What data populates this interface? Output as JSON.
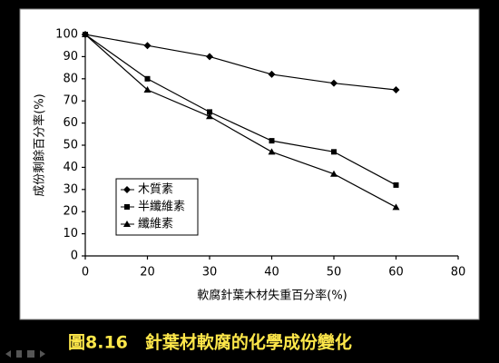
{
  "chart_data": {
    "type": "line",
    "title": "圖8.16　針葉材軟腐的化學成份變化",
    "x_label": "軟腐針葉木材失重百分率(%)",
    "y_label": "成份剩餘百分率(%)",
    "categories": [
      0,
      20,
      30,
      40,
      50,
      60,
      80
    ],
    "series": [
      {
        "name": "木質素",
        "color": "#000000",
        "marker": "diamond",
        "values": [
          100,
          95,
          90,
          82,
          78,
          75,
          null
        ]
      },
      {
        "name": "半纖維素",
        "color": "#000000",
        "marker": "square",
        "values": [
          100,
          80,
          65,
          52,
          47,
          32,
          null
        ]
      },
      {
        "name": "纖維素",
        "color": "#000000",
        "marker": "triangle",
        "values": [
          100,
          75,
          63,
          47,
          37,
          22,
          null
        ]
      }
    ],
    "ylim": [
      0,
      100
    ],
    "yticks": [
      0,
      10,
      20,
      30,
      40,
      50,
      60,
      70,
      80,
      90,
      100
    ],
    "legend": "center-left",
    "grid": false
  }
}
